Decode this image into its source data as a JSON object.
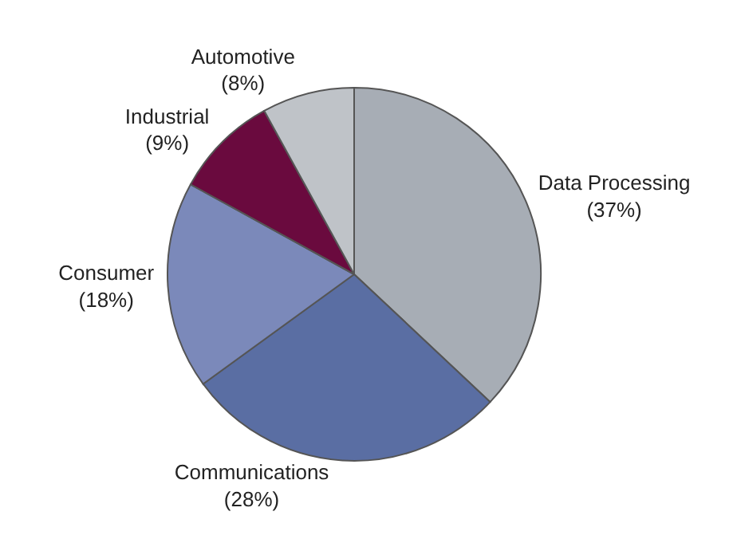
{
  "chart_data": {
    "type": "pie",
    "categories": [
      "Data Processing",
      "Communications",
      "Consumer",
      "Industrial",
      "Automotive"
    ],
    "values": [
      37,
      28,
      18,
      9,
      8
    ],
    "value_labels": [
      "(37%)",
      "(28%)",
      "(18%)",
      "(9%)",
      "(8%)"
    ],
    "colors": [
      "#a7adb5",
      "#5a6ea3",
      "#7b89ba",
      "#6a0a3e",
      "#bfc3c8"
    ],
    "legend": false
  }
}
